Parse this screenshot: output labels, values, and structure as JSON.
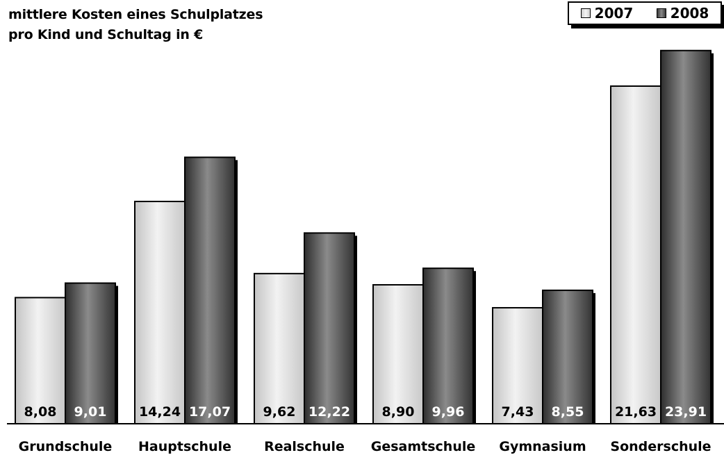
{
  "title_line1": "mittlere Kosten eines Schulplatzes",
  "title_line2": "pro Kind und Schultag in €",
  "colors": {
    "light": "#e6e6e6",
    "dark": "#6e6e6e",
    "axis": "#000000"
  },
  "chart_data": {
    "type": "bar",
    "title": "mittlere Kosten eines Schulplatzes pro Kind und Schultag in €",
    "categories": [
      "Grundschule",
      "Hauptschule",
      "Realschule",
      "Gesamtschule",
      "Gymnasium",
      "Sonderschule"
    ],
    "series": [
      {
        "name": "2007",
        "values": [
          8.08,
          14.24,
          9.62,
          8.9,
          7.43,
          21.63
        ],
        "labels": [
          "8,08",
          "14,24",
          "9,62",
          "8,90",
          "7,43",
          "21,63"
        ]
      },
      {
        "name": "2008",
        "values": [
          9.01,
          17.07,
          12.22,
          9.96,
          8.55,
          23.91
        ],
        "labels": [
          "9,01",
          "17,07",
          "12,22",
          "9,96",
          "8,55",
          "23,91"
        ]
      }
    ],
    "ylim": [
      0,
      25
    ],
    "grid": false,
    "legend": "top-right"
  }
}
